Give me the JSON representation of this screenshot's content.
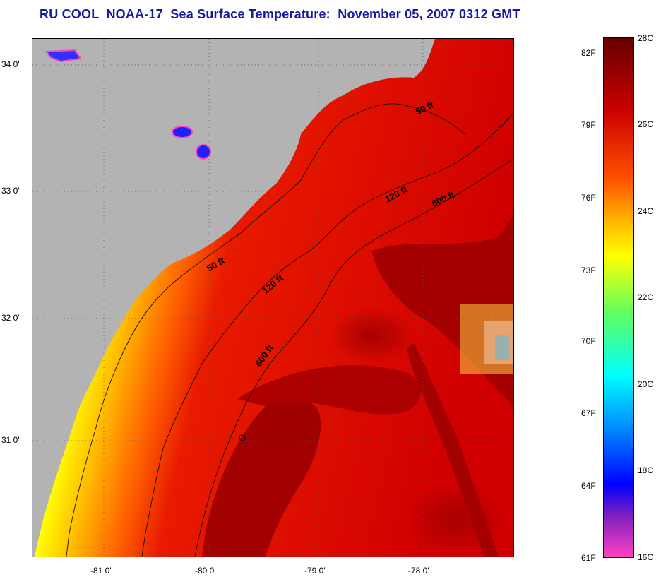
{
  "title": "RU COOL  NOAA-17  Sea Surface Temperature:  November 05, 2007 0312 GMT",
  "map": {
    "lat_labels": [
      "34 0'",
      "33 0'",
      "32 0'",
      "31 0'"
    ],
    "lon_labels": [
      "-81 0'",
      "-80 0'",
      "-79 0'",
      "-78 0'"
    ],
    "contour_labels": {
      "fifty_north": "50 ft",
      "fifty_south": "50 ft",
      "onetwenty_north": "120 ft",
      "onetwenty_south": "120 ft",
      "sixhundred_north": "600 ft",
      "sixhundred_south": "600 ft"
    },
    "colors": {
      "land": "#b3b3b3",
      "gulf_stream": "#b00000",
      "shelf": "#ffd000",
      "nearshore": "#00b0ff"
    }
  },
  "colorbar": {
    "fahrenheit": [
      "82F",
      "79F",
      "76F",
      "73F",
      "70F",
      "67F",
      "64F",
      "61F"
    ],
    "celsius": [
      "28C",
      "26C",
      "24C",
      "22C",
      "20C",
      "18C",
      "16C"
    ],
    "colors": [
      "#660000",
      "#cc0000",
      "#ff5000",
      "#ffc000",
      "#ffff00",
      "#60ff60",
      "#00ffff",
      "#0080ff",
      "#0000ff",
      "#8020c0",
      "#ff40c0"
    ]
  }
}
